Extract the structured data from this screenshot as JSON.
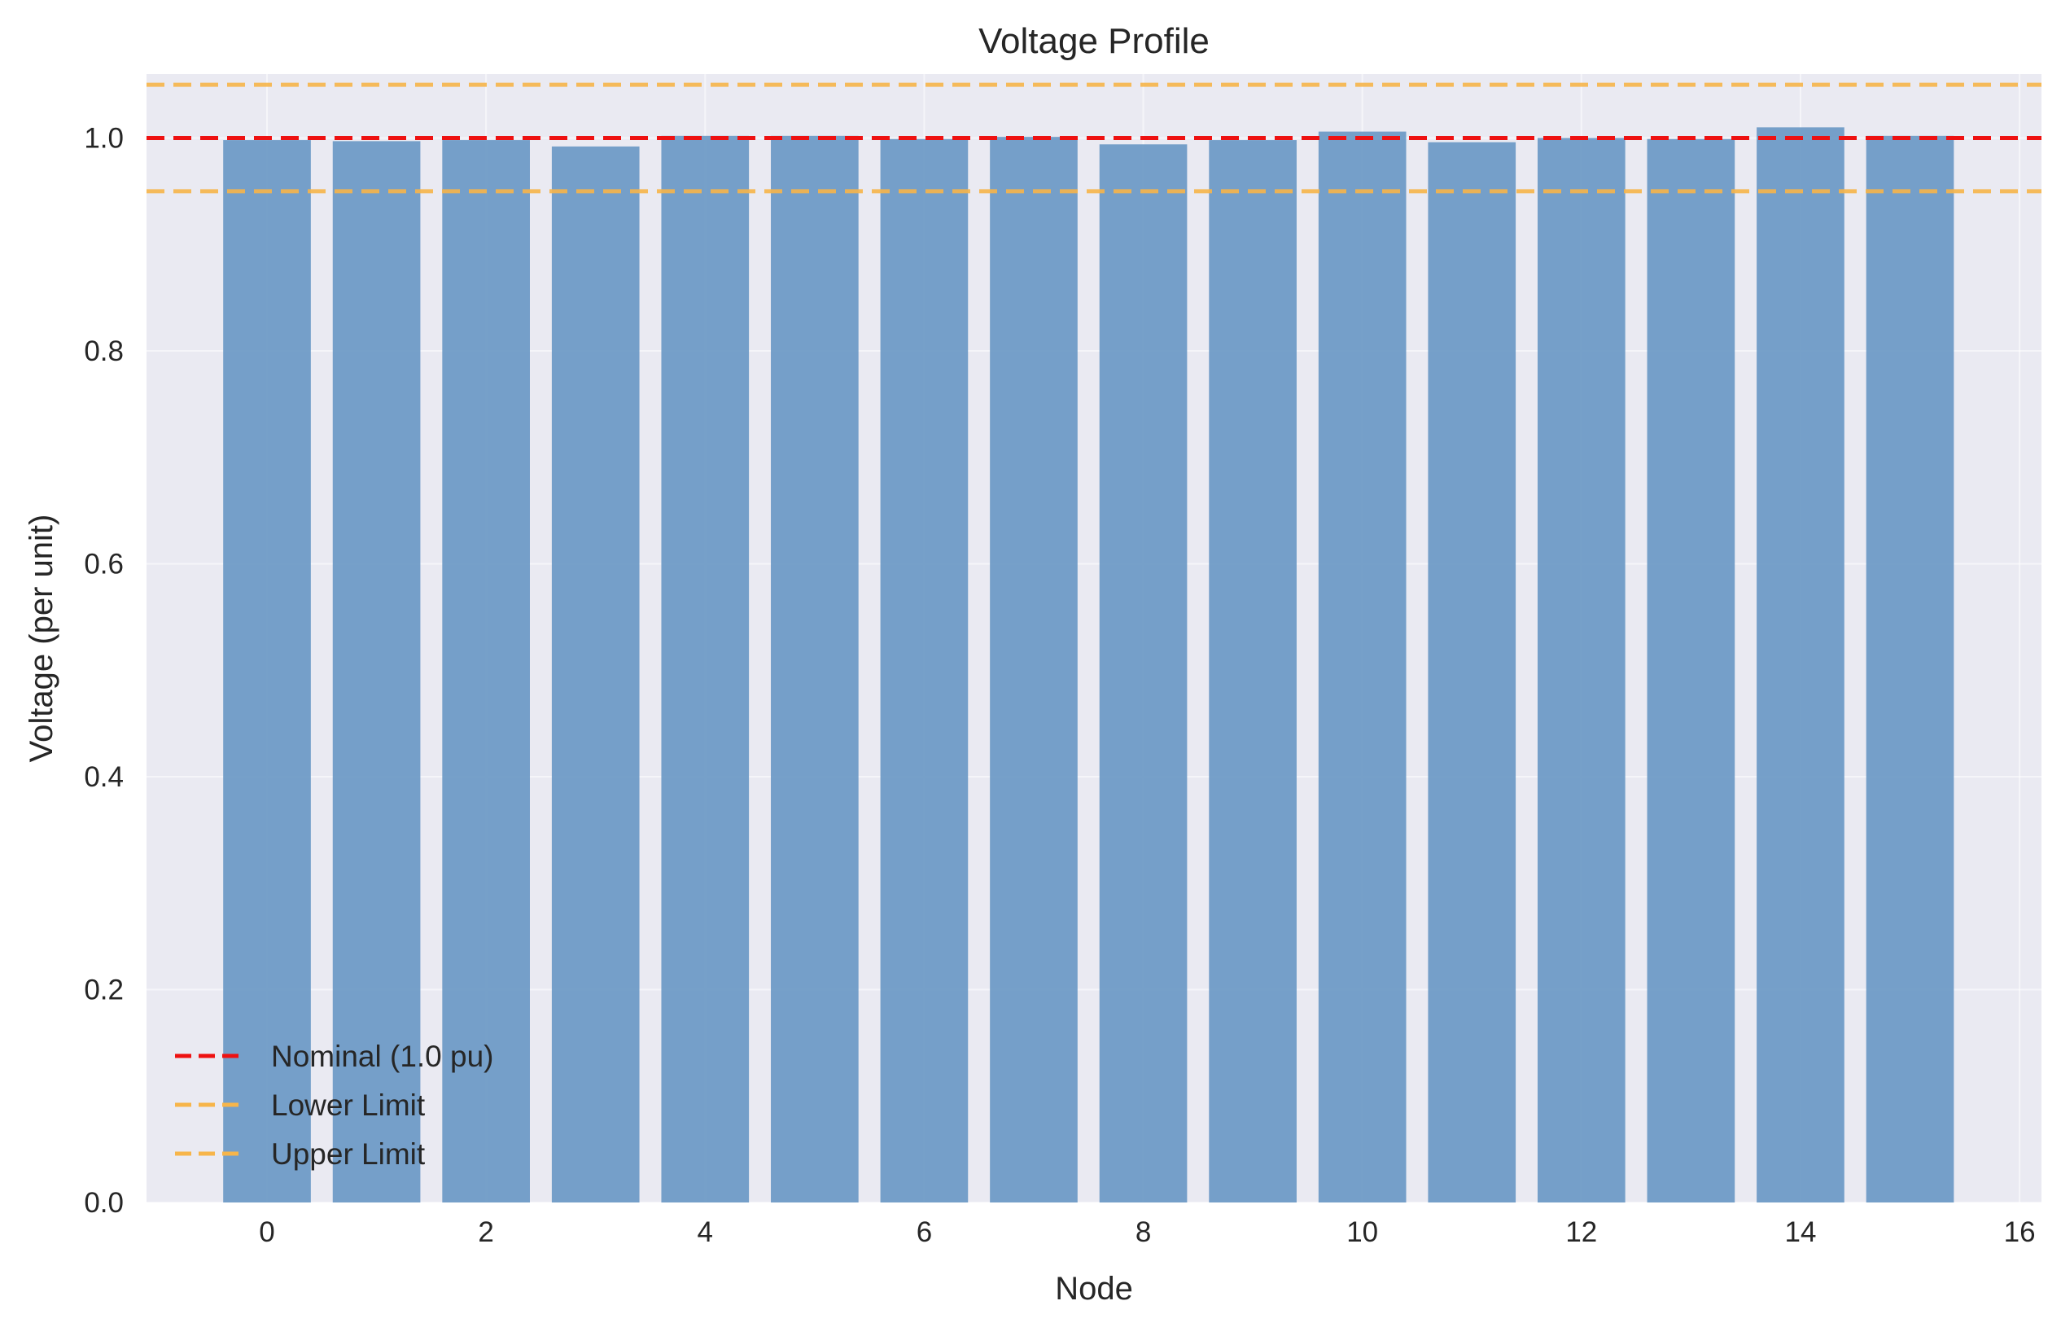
{
  "chart_data": {
    "type": "bar",
    "title": "Voltage Profile",
    "xlabel": "Node",
    "ylabel": "Voltage (per unit)",
    "categories": [
      0,
      1,
      2,
      3,
      4,
      5,
      6,
      7,
      8,
      9,
      10,
      11,
      12,
      13,
      14,
      15
    ],
    "values": [
      0.998,
      0.997,
      0.998,
      0.992,
      1.002,
      1.002,
      0.999,
      1.001,
      0.994,
      0.998,
      1.006,
      0.996,
      1.0,
      0.999,
      1.01,
      1.002
    ],
    "xlim": [
      -1.1,
      16.2
    ],
    "ylim": [
      0.0,
      1.06
    ],
    "xticks": [
      "0",
      "2",
      "4",
      "6",
      "8",
      "10",
      "12",
      "14",
      "16"
    ],
    "yticks": [
      "0.0",
      "0.2",
      "0.4",
      "0.6",
      "0.8",
      "1.0"
    ],
    "grid": true,
    "legend_position": "lower-left",
    "bar_color": "#6f9bc6",
    "reference_lines": [
      {
        "name": "Nominal (1.0 pu)",
        "value": 1.0,
        "color": "#ee1111",
        "style": "dashed"
      },
      {
        "name": "Lower Limit",
        "value": 0.95,
        "color": "#f7b54a",
        "style": "dashed"
      },
      {
        "name": "Upper Limit",
        "value": 1.05,
        "color": "#f7b54a",
        "style": "dashed"
      }
    ]
  }
}
